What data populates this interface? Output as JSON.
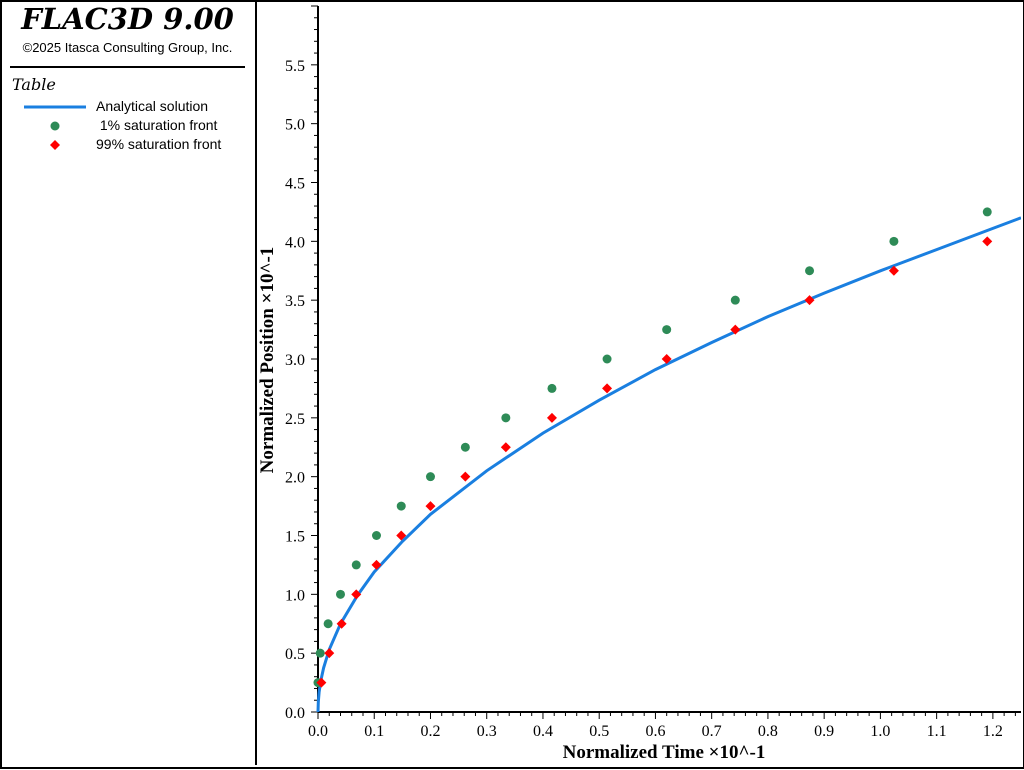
{
  "app": {
    "title": "FLAC3D 9.00",
    "copyright": "©2025 Itasca Consulting Group, Inc."
  },
  "legend": {
    "heading": "Table",
    "items": [
      {
        "label": "Analytical solution",
        "symbol": "line",
        "color": "#1a7fe0"
      },
      {
        "label": " 1% saturation front",
        "symbol": "circle",
        "color": "#2e8b57"
      },
      {
        "label": "99% saturation front",
        "symbol": "diamond",
        "color": "#ff0000"
      }
    ]
  },
  "chart_data": {
    "type": "scatter",
    "xlabel": "Normalized Time ×10^-1",
    "ylabel": "Normalized Position ×10^-1",
    "xlim": [
      0,
      1.25
    ],
    "ylim": [
      0,
      6.0
    ],
    "x_ticks": [
      "0.0",
      "0.1",
      "0.2",
      "0.3",
      "0.4",
      "0.5",
      "0.6",
      "0.7",
      "0.8",
      "0.9",
      "1.0",
      "1.1",
      "1.2"
    ],
    "y_ticks": [
      "0.0",
      "0.5",
      "1.0",
      "1.5",
      "2.0",
      "2.5",
      "3.0",
      "3.5",
      "4.0",
      "4.5",
      "5.0",
      "5.5"
    ],
    "series": [
      {
        "name": "Analytical solution",
        "kind": "line",
        "color": "#1a7fe0",
        "x": [
          0.0,
          0.0005,
          0.002,
          0.005,
          0.01,
          0.02,
          0.04,
          0.07,
          0.1,
          0.15,
          0.2,
          0.3,
          0.4,
          0.5,
          0.6,
          0.7,
          0.8,
          0.9,
          1.0,
          1.1,
          1.2,
          1.25
        ],
        "y": [
          0.0,
          0.084,
          0.168,
          0.265,
          0.375,
          0.53,
          0.75,
          0.99,
          1.19,
          1.45,
          1.68,
          2.05,
          2.37,
          2.65,
          2.91,
          3.14,
          3.36,
          3.56,
          3.75,
          3.93,
          4.11,
          4.2
        ]
      },
      {
        "name": " 1% saturation front",
        "kind": "circle",
        "color": "#2e8b57",
        "x": [
          0.0,
          0.004,
          0.018,
          0.04,
          0.068,
          0.104,
          0.148,
          0.2,
          0.262,
          0.334,
          0.416,
          0.514,
          0.62,
          0.742,
          0.874,
          1.024,
          1.19
        ],
        "y": [
          0.25,
          0.5,
          0.75,
          1.0,
          1.25,
          1.5,
          1.75,
          2.0,
          2.25,
          2.5,
          2.75,
          3.0,
          3.25,
          3.5,
          3.75,
          4.0,
          4.25
        ]
      },
      {
        "name": "99% saturation front",
        "kind": "diamond",
        "color": "#ff0000",
        "x": [
          0.006,
          0.02,
          0.042,
          0.068,
          0.104,
          0.148,
          0.2,
          0.262,
          0.334,
          0.416,
          0.514,
          0.62,
          0.742,
          0.874,
          1.024,
          1.19
        ],
        "y": [
          0.25,
          0.5,
          0.75,
          1.0,
          1.25,
          1.5,
          1.75,
          2.0,
          2.25,
          2.5,
          2.75,
          3.0,
          3.25,
          3.5,
          3.75,
          4.0
        ]
      }
    ]
  }
}
